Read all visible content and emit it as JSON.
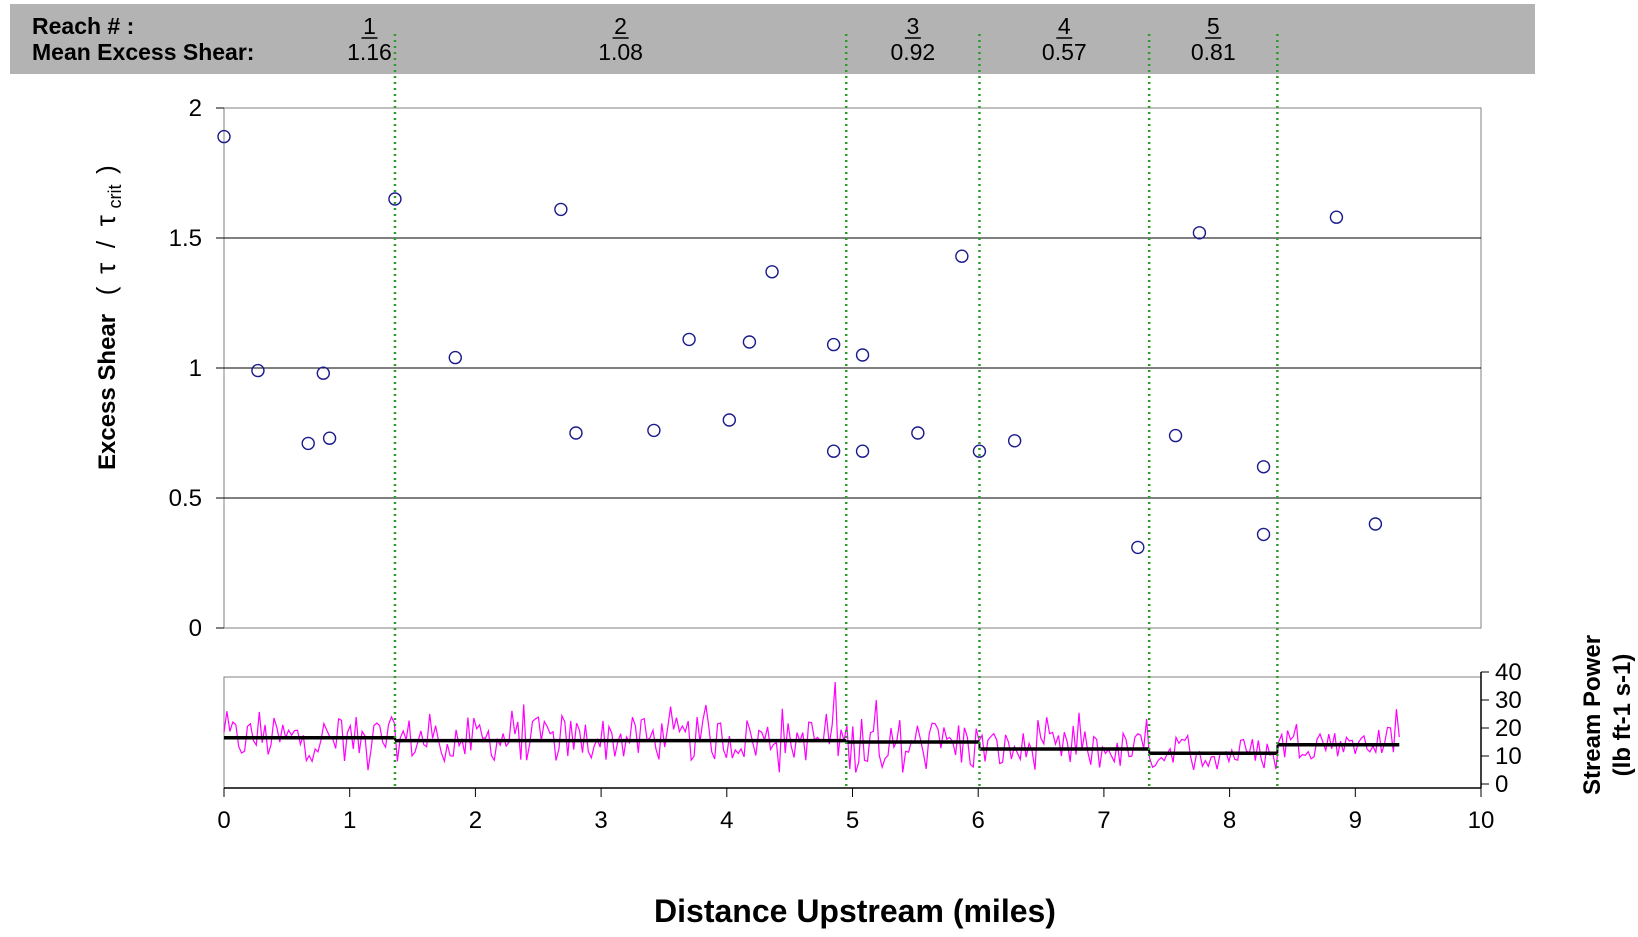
{
  "header": {
    "reach_label": "Reach # :",
    "shear_label": "Mean Excess Shear:",
    "reaches": [
      {
        "number": "1",
        "mean": "1.16"
      },
      {
        "number": "2",
        "mean": "1.08"
      },
      {
        "number": "3",
        "mean": "0.92"
      },
      {
        "number": "4",
        "mean": "0.57"
      },
      {
        "number": "5",
        "mean": "0.81"
      }
    ]
  },
  "colors": {
    "header_band": "#b3b3b3",
    "points": "#1a1a8c",
    "boundaries": "#2e9b2e",
    "stream_power": "#ff00ff",
    "reach_mean": "#000000"
  },
  "chart_data": [
    {
      "type": "scatter",
      "ylabel": "Excess Shear",
      "ylabel_ratio": {
        "tau": "τ",
        "slash": "/",
        "tau_crit": "τ",
        "subscript": "crit"
      },
      "xlim": [
        0,
        10
      ],
      "ylim": [
        0,
        2
      ],
      "yticks": [
        "0",
        "0.5",
        "1",
        "1.5",
        "2"
      ],
      "grid": true,
      "marker": "open-circle",
      "reach_boundaries": [
        1.36,
        4.95,
        6.01,
        7.36,
        8.38
      ],
      "points": [
        {
          "x": 0.0,
          "y": 1.89
        },
        {
          "x": 0.27,
          "y": 0.99
        },
        {
          "x": 0.67,
          "y": 0.71
        },
        {
          "x": 0.79,
          "y": 0.98
        },
        {
          "x": 0.84,
          "y": 0.73
        },
        {
          "x": 1.36,
          "y": 1.65
        },
        {
          "x": 1.84,
          "y": 1.04
        },
        {
          "x": 2.68,
          "y": 1.61
        },
        {
          "x": 2.8,
          "y": 0.75
        },
        {
          "x": 3.42,
          "y": 0.76
        },
        {
          "x": 3.7,
          "y": 1.11
        },
        {
          "x": 4.02,
          "y": 0.8
        },
        {
          "x": 4.18,
          "y": 1.1
        },
        {
          "x": 4.36,
          "y": 1.37
        },
        {
          "x": 4.85,
          "y": 1.09
        },
        {
          "x": 4.85,
          "y": 0.68
        },
        {
          "x": 5.08,
          "y": 1.05
        },
        {
          "x": 5.08,
          "y": 0.68
        },
        {
          "x": 5.52,
          "y": 0.75
        },
        {
          "x": 5.87,
          "y": 1.43
        },
        {
          "x": 6.01,
          "y": 0.68
        },
        {
          "x": 6.29,
          "y": 0.72
        },
        {
          "x": 7.27,
          "y": 0.31
        },
        {
          "x": 7.57,
          "y": 0.74
        },
        {
          "x": 7.76,
          "y": 1.52
        },
        {
          "x": 8.27,
          "y": 0.62
        },
        {
          "x": 8.27,
          "y": 0.36
        },
        {
          "x": 8.85,
          "y": 1.58
        },
        {
          "x": 9.16,
          "y": 0.4
        }
      ]
    },
    {
      "type": "line",
      "xlabel": "Distance Upstream (miles)",
      "xticks": [
        "0",
        "1",
        "2",
        "3",
        "4",
        "5",
        "6",
        "7",
        "8",
        "9",
        "10"
      ],
      "xlim": [
        0,
        10
      ],
      "ylabel_line1": "Stream Power",
      "ylabel_line2": "(lb ft-1 s-1)",
      "yaxis_position": "right",
      "yticks": [
        "0",
        "10",
        "20",
        "30",
        "40"
      ],
      "ylim": [
        0,
        40
      ],
      "stream_power": {
        "x_start": 0,
        "x_end": 9.35,
        "samples": 400,
        "reach_stats": [
          {
            "from": 0,
            "to": 4.95,
            "mean": 16,
            "spread": 16
          },
          {
            "from": 4.95,
            "to": 6.01,
            "mean": 14,
            "spread": 20
          },
          {
            "from": 6.01,
            "to": 7.36,
            "mean": 12,
            "spread": 14
          },
          {
            "from": 7.36,
            "to": 8.38,
            "mean": 11,
            "spread": 12
          },
          {
            "from": 8.38,
            "to": 9.35,
            "mean": 15,
            "spread": 12
          }
        ]
      },
      "reach_means": [
        {
          "from": 0,
          "to": 1.36,
          "y": 16.5
        },
        {
          "from": 1.36,
          "to": 4.95,
          "y": 15.5
        },
        {
          "from": 4.95,
          "to": 6.01,
          "y": 15.0
        },
        {
          "from": 6.01,
          "to": 7.36,
          "y": 12.5
        },
        {
          "from": 7.36,
          "to": 8.38,
          "y": 11.0
        },
        {
          "from": 8.38,
          "to": 9.35,
          "y": 14.0
        }
      ]
    }
  ]
}
